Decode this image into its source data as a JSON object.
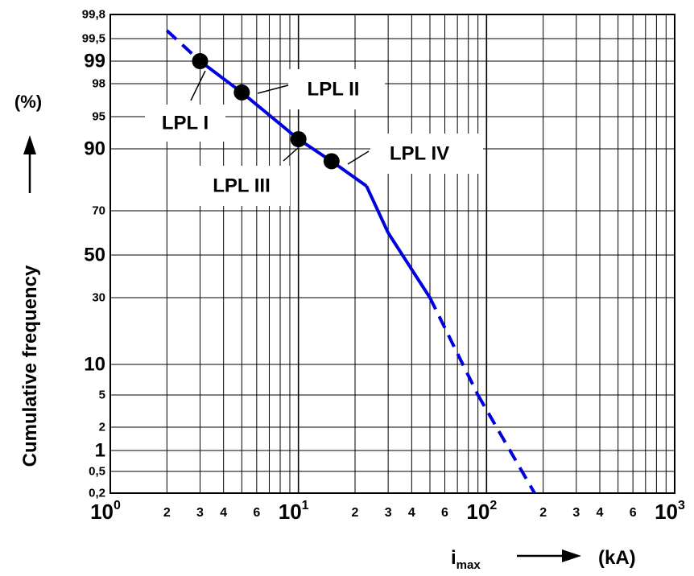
{
  "chart_data": {
    "type": "line",
    "x_scale": "log",
    "y_scale": "probability",
    "xlim": [
      1,
      1000
    ],
    "ylim": [
      0.2,
      99.8
    ],
    "grid": true,
    "xlabel": "i",
    "xlabel_sub": "max",
    "x_unit": "(kA)",
    "ylabel": "Cumulative frequency",
    "y_unit": "(%)",
    "x_ticks": [
      {
        "value": 1,
        "base": "10",
        "exp": "0",
        "major": true
      },
      {
        "value": 2,
        "label": "2"
      },
      {
        "value": 3,
        "label": "3"
      },
      {
        "value": 4,
        "label": "4"
      },
      {
        "value": 6,
        "label": "6"
      },
      {
        "value": 10,
        "base": "10",
        "exp": "1",
        "major": true
      },
      {
        "value": 20,
        "label": "2"
      },
      {
        "value": 30,
        "label": "3"
      },
      {
        "value": 40,
        "label": "4"
      },
      {
        "value": 60,
        "label": "6"
      },
      {
        "value": 100,
        "base": "10",
        "exp": "2",
        "major": true
      },
      {
        "value": 200,
        "label": "2"
      },
      {
        "value": 300,
        "label": "3"
      },
      {
        "value": 400,
        "label": "4"
      },
      {
        "value": 600,
        "label": "6"
      },
      {
        "value": 1000,
        "base": "10",
        "exp": "3",
        "major": true
      }
    ],
    "y_ticks": [
      {
        "value": 0.2,
        "label": "0,2",
        "major": false
      },
      {
        "value": 0.5,
        "label": "0,5",
        "major": false
      },
      {
        "value": 1,
        "label": "1",
        "major": true
      },
      {
        "value": 2,
        "label": "2",
        "major": false
      },
      {
        "value": 5,
        "label": "5",
        "major": false
      },
      {
        "value": 10,
        "label": "10",
        "major": true
      },
      {
        "value": 30,
        "label": "30",
        "major": false
      },
      {
        "value": 50,
        "label": "50",
        "major": true
      },
      {
        "value": 70,
        "label": "70",
        "major": false
      },
      {
        "value": 90,
        "label": "90",
        "major": true
      },
      {
        "value": 95,
        "label": "95",
        "major": false
      },
      {
        "value": 98,
        "label": "98",
        "major": false
      },
      {
        "value": 99,
        "label": "99",
        "major": true
      },
      {
        "value": 99.5,
        "label": "99,5",
        "major": false
      },
      {
        "value": 99.8,
        "label": "99,8",
        "major": false
      }
    ],
    "series": [
      {
        "color": "#0000dd",
        "points": [
          [
            2,
            99.6
          ],
          [
            3,
            99.0
          ],
          [
            5,
            97.2
          ],
          [
            10,
            91.5
          ],
          [
            15,
            86
          ],
          [
            23,
            78
          ],
          [
            30,
            60
          ],
          [
            50,
            30
          ],
          [
            90,
            5
          ],
          [
            180,
            0.2
          ]
        ],
        "dashed_segments": [
          [
            0,
            1
          ],
          [
            7,
            9
          ]
        ]
      }
    ],
    "annotations": [
      {
        "label": "LPL I",
        "x": 3,
        "y": 99.0
      },
      {
        "label": "LPL II",
        "x": 5,
        "y": 97.2
      },
      {
        "label": "LPL III",
        "x": 10,
        "y": 91.5
      },
      {
        "label": "LPL IV",
        "x": 15,
        "y": 86
      }
    ]
  }
}
